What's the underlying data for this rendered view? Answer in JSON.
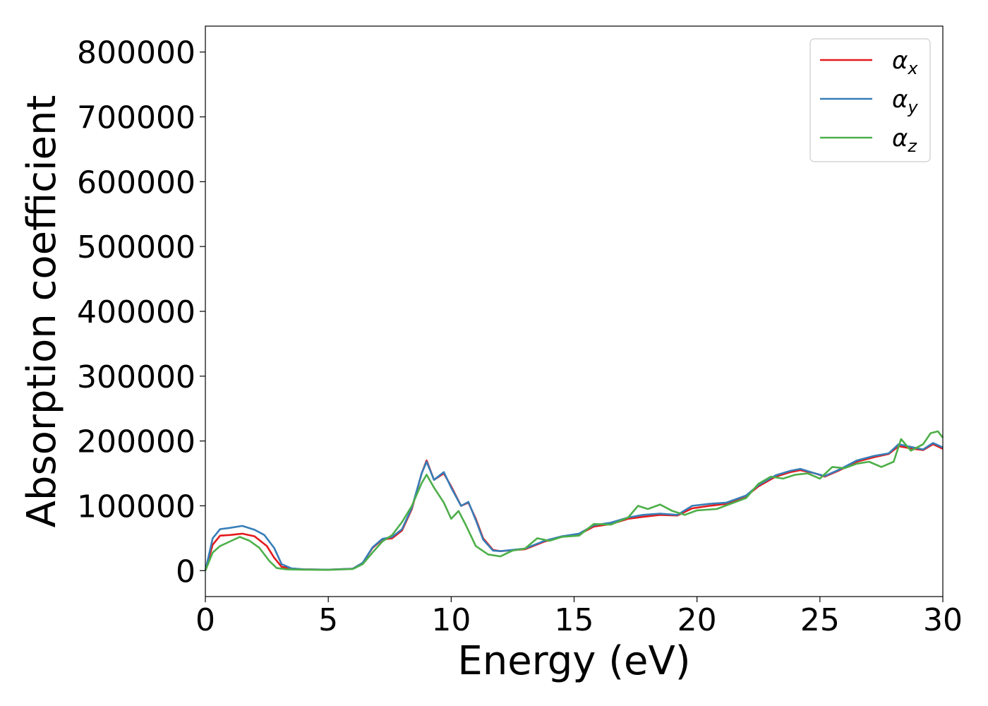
{
  "chart_data": {
    "type": "line",
    "title": "",
    "xlabel": "Energy (eV)",
    "ylabel": "Absorption coefficient",
    "xlim": [
      0,
      30
    ],
    "ylim": [
      -40000,
      840000
    ],
    "x_ticks": [
      0,
      5,
      10,
      15,
      20,
      25,
      30
    ],
    "x_tick_labels": [
      "0",
      "5",
      "10",
      "15",
      "20",
      "25",
      "30"
    ],
    "y_ticks": [
      0,
      100000,
      200000,
      300000,
      400000,
      500000,
      600000,
      700000,
      800000
    ],
    "y_tick_labels": [
      "0",
      "100000",
      "200000",
      "300000",
      "400000",
      "500000",
      "600000",
      "700000",
      "800000"
    ],
    "grid": false,
    "legend_position": "top-right",
    "series": [
      {
        "name": "α_x",
        "legend_symbol": "α",
        "legend_sub": "x",
        "color": "#e41a1c",
        "points": [
          [
            0,
            0
          ],
          [
            0.3,
            40000
          ],
          [
            0.6,
            54000
          ],
          [
            1.0,
            55000
          ],
          [
            1.5,
            57000
          ],
          [
            2.0,
            53000
          ],
          [
            2.5,
            38000
          ],
          [
            2.8,
            20000
          ],
          [
            3.1,
            6000
          ],
          [
            3.5,
            3000
          ],
          [
            4,
            2000
          ],
          [
            5,
            1500
          ],
          [
            6,
            3000
          ],
          [
            6.4,
            12000
          ],
          [
            6.8,
            35000
          ],
          [
            7.2,
            48000
          ],
          [
            7.6,
            50000
          ],
          [
            8.0,
            62000
          ],
          [
            8.4,
            95000
          ],
          [
            8.8,
            150000
          ],
          [
            9.0,
            170000
          ],
          [
            9.3,
            140000
          ],
          [
            9.7,
            150000
          ],
          [
            10.0,
            130000
          ],
          [
            10.4,
            100000
          ],
          [
            10.7,
            105000
          ],
          [
            11.0,
            80000
          ],
          [
            11.3,
            50000
          ],
          [
            11.7,
            32000
          ],
          [
            12.0,
            30000
          ],
          [
            13,
            33000
          ],
          [
            13.8,
            45000
          ],
          [
            14.5,
            52000
          ],
          [
            15.2,
            56000
          ],
          [
            15.8,
            68000
          ],
          [
            16.5,
            72000
          ],
          [
            17.2,
            80000
          ],
          [
            17.8,
            83000
          ],
          [
            18.5,
            86000
          ],
          [
            19.2,
            85000
          ],
          [
            19.8,
            96000
          ],
          [
            20.5,
            100000
          ],
          [
            21.2,
            103000
          ],
          [
            22,
            115000
          ],
          [
            22.5,
            130000
          ],
          [
            23.2,
            145000
          ],
          [
            23.8,
            152000
          ],
          [
            24.2,
            155000
          ],
          [
            24.8,
            150000
          ],
          [
            25.2,
            145000
          ],
          [
            25.8,
            155000
          ],
          [
            26.5,
            168000
          ],
          [
            27.2,
            175000
          ],
          [
            27.8,
            180000
          ],
          [
            28.2,
            192000
          ],
          [
            28.8,
            188000
          ],
          [
            29.2,
            186000
          ],
          [
            29.6,
            195000
          ],
          [
            30.0,
            188000
          ]
        ]
      },
      {
        "name": "α_y",
        "legend_symbol": "α",
        "legend_sub": "y",
        "color": "#377eb8",
        "points": [
          [
            0,
            0
          ],
          [
            0.3,
            50000
          ],
          [
            0.6,
            64000
          ],
          [
            1.0,
            66000
          ],
          [
            1.5,
            69000
          ],
          [
            2.0,
            63000
          ],
          [
            2.4,
            55000
          ],
          [
            2.8,
            35000
          ],
          [
            3.1,
            10000
          ],
          [
            3.5,
            3500
          ],
          [
            4,
            2000
          ],
          [
            5,
            1500
          ],
          [
            6,
            3000
          ],
          [
            6.4,
            12000
          ],
          [
            6.8,
            36000
          ],
          [
            7.2,
            49000
          ],
          [
            7.6,
            52000
          ],
          [
            8.0,
            64000
          ],
          [
            8.4,
            97000
          ],
          [
            8.8,
            150000
          ],
          [
            9.0,
            168000
          ],
          [
            9.3,
            140000
          ],
          [
            9.7,
            152000
          ],
          [
            10.0,
            128000
          ],
          [
            10.4,
            100000
          ],
          [
            10.7,
            106000
          ],
          [
            11.0,
            78000
          ],
          [
            11.3,
            48000
          ],
          [
            11.7,
            31000
          ],
          [
            12.0,
            30000
          ],
          [
            13,
            34000
          ],
          [
            13.8,
            46000
          ],
          [
            14.5,
            53000
          ],
          [
            15.2,
            57000
          ],
          [
            15.8,
            70000
          ],
          [
            16.5,
            74000
          ],
          [
            17.2,
            82000
          ],
          [
            17.8,
            86000
          ],
          [
            18.5,
            88000
          ],
          [
            19.2,
            86000
          ],
          [
            19.8,
            100000
          ],
          [
            20.5,
            103000
          ],
          [
            21.2,
            105000
          ],
          [
            22,
            116000
          ],
          [
            22.5,
            132000
          ],
          [
            23.2,
            147000
          ],
          [
            23.8,
            154000
          ],
          [
            24.2,
            157000
          ],
          [
            24.8,
            150000
          ],
          [
            25.2,
            146000
          ],
          [
            25.8,
            156000
          ],
          [
            26.5,
            170000
          ],
          [
            27.2,
            177000
          ],
          [
            27.8,
            181000
          ],
          [
            28.2,
            195000
          ],
          [
            28.8,
            190000
          ],
          [
            29.2,
            187000
          ],
          [
            29.6,
            197000
          ],
          [
            30.0,
            190000
          ]
        ]
      },
      {
        "name": "α_z",
        "legend_symbol": "α",
        "legend_sub": "z",
        "color": "#4daf4a",
        "points": [
          [
            0,
            0
          ],
          [
            0.3,
            28000
          ],
          [
            0.6,
            38000
          ],
          [
            1.0,
            45000
          ],
          [
            1.4,
            52000
          ],
          [
            1.8,
            46000
          ],
          [
            2.2,
            35000
          ],
          [
            2.6,
            15000
          ],
          [
            2.9,
            4000
          ],
          [
            3.3,
            2000
          ],
          [
            4,
            1500
          ],
          [
            5,
            1200
          ],
          [
            6,
            2500
          ],
          [
            6.4,
            10000
          ],
          [
            6.8,
            28000
          ],
          [
            7.2,
            45000
          ],
          [
            7.6,
            55000
          ],
          [
            8.0,
            75000
          ],
          [
            8.4,
            100000
          ],
          [
            8.8,
            135000
          ],
          [
            9.0,
            148000
          ],
          [
            9.3,
            128000
          ],
          [
            9.7,
            105000
          ],
          [
            10.0,
            80000
          ],
          [
            10.3,
            92000
          ],
          [
            10.6,
            70000
          ],
          [
            11.0,
            38000
          ],
          [
            11.5,
            25000
          ],
          [
            12.0,
            22000
          ],
          [
            12.5,
            31000
          ],
          [
            13,
            34000
          ],
          [
            13.5,
            50000
          ],
          [
            14,
            46000
          ],
          [
            14.5,
            52000
          ],
          [
            15.2,
            54000
          ],
          [
            15.8,
            72000
          ],
          [
            16.5,
            71000
          ],
          [
            17.2,
            82000
          ],
          [
            17.6,
            100000
          ],
          [
            18.0,
            95000
          ],
          [
            18.5,
            102000
          ],
          [
            19.0,
            92000
          ],
          [
            19.5,
            86000
          ],
          [
            20.0,
            93000
          ],
          [
            20.8,
            95000
          ],
          [
            21.5,
            105000
          ],
          [
            22.0,
            112000
          ],
          [
            22.5,
            134000
          ],
          [
            23.0,
            145000
          ],
          [
            23.5,
            142000
          ],
          [
            24.0,
            148000
          ],
          [
            24.5,
            150000
          ],
          [
            25.0,
            142000
          ],
          [
            25.5,
            160000
          ],
          [
            26.0,
            158000
          ],
          [
            26.5,
            165000
          ],
          [
            27.0,
            168000
          ],
          [
            27.5,
            160000
          ],
          [
            28.0,
            168000
          ],
          [
            28.3,
            203000
          ],
          [
            28.7,
            185000
          ],
          [
            29.2,
            195000
          ],
          [
            29.5,
            212000
          ],
          [
            29.8,
            215000
          ],
          [
            30.0,
            205000
          ]
        ]
      }
    ]
  }
}
